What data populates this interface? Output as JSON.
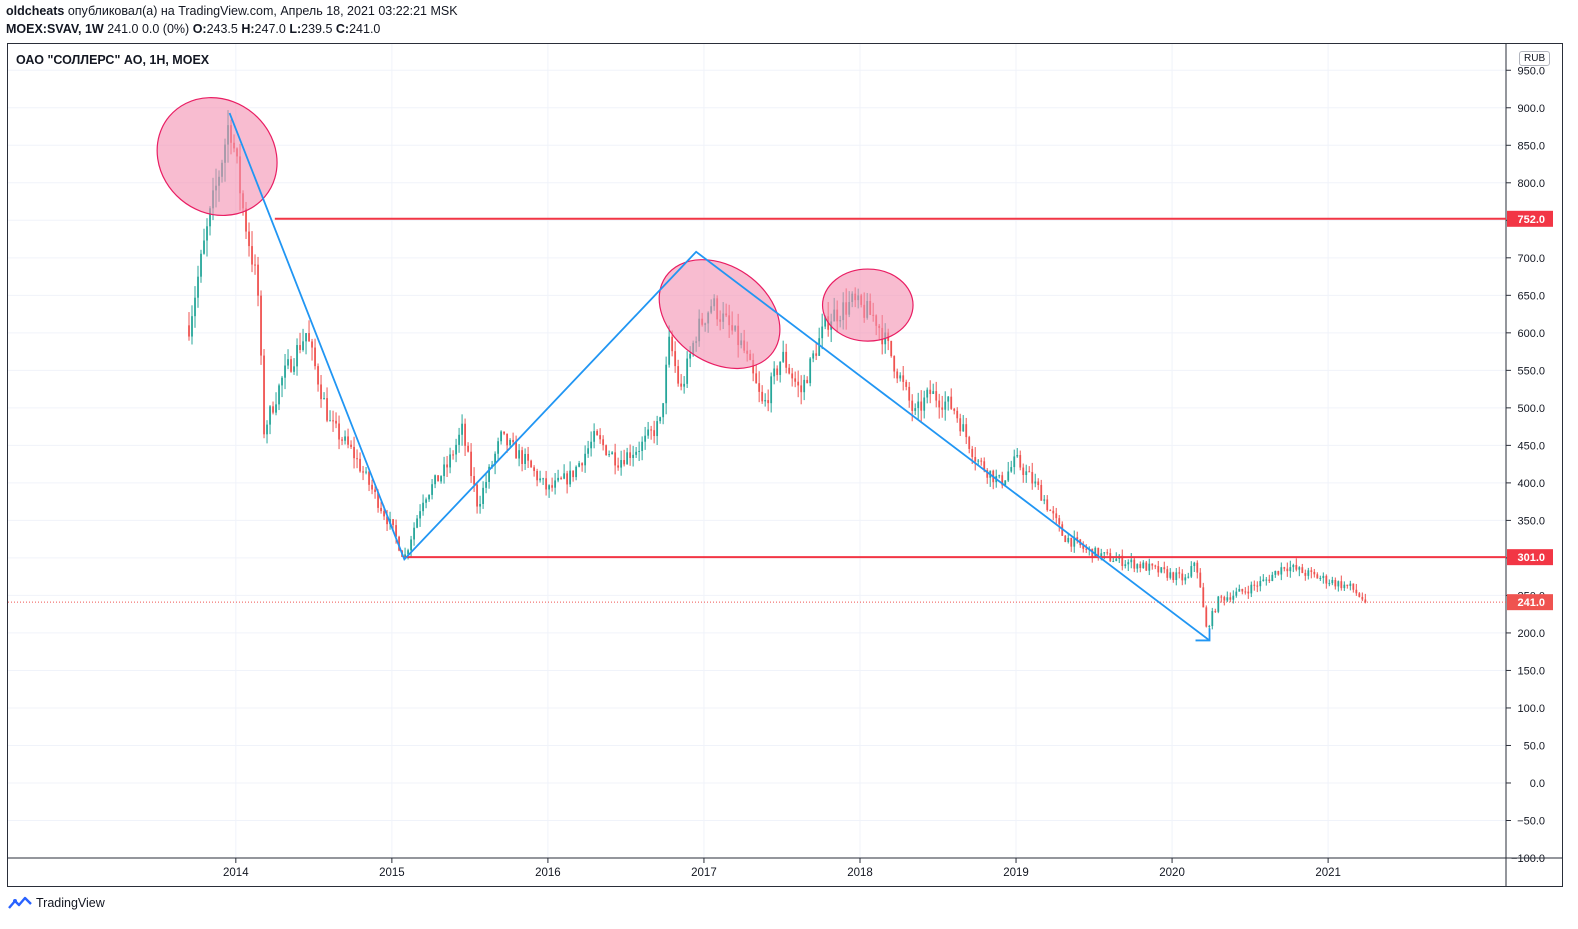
{
  "header": {
    "author": "oldcheats",
    "publish_line": " опубликовал(а) на TradingView.com, Апрель 18, 2021 03:22:21 MSK",
    "symbol": "MOEX:SVAV, 1W",
    "quote_values": "241.0 0.0 (0%)",
    "o_label": "O:",
    "o_value": "243.5",
    "h_label": "H:",
    "h_value": "247.0",
    "l_label": "L:",
    "l_value": "239.5",
    "c_label": "C:",
    "c_value": "241.0"
  },
  "chart_title": "ОАО \"СОЛЛЕРС\" АО, 1Н, MOEX",
  "currency": "RUB",
  "footer": {
    "brand": "TradingView"
  },
  "colors": {
    "up": "#26a69a",
    "down": "#ef5350",
    "level": "#f23645",
    "trend": "#2196f3",
    "ellipse_fill": "#f48fb1",
    "ellipse_stroke": "#e91e63",
    "grid": "#f0f3fa"
  },
  "chart_data": {
    "type": "candlestick",
    "timeframe": "1W",
    "x_ticks": [
      "2014",
      "2015",
      "2016",
      "2017",
      "2018",
      "2019",
      "2020",
      "2021"
    ],
    "x_range": [
      2012.54,
      2022.14
    ],
    "y_ticks": [
      "950.0",
      "900.0",
      "850.0",
      "800.0",
      "750.0",
      "700.0",
      "650.0",
      "600.0",
      "550.0",
      "500.0",
      "450.0",
      "400.0",
      "350.0",
      "300.0",
      "250.0",
      "200.0",
      "150.0",
      "100.0",
      "50.0",
      "0.0",
      "−50.0",
      "−100.0"
    ],
    "y_range": [
      -100,
      985
    ],
    "price_path": [
      [
        2013.7,
        610
      ],
      [
        2013.8,
        720
      ],
      [
        2013.88,
        800
      ],
      [
        2013.96,
        885
      ],
      [
        2014.05,
        760
      ],
      [
        2014.14,
        660
      ],
      [
        2014.18,
        470
      ],
      [
        2014.3,
        540
      ],
      [
        2014.45,
        600
      ],
      [
        2014.6,
        480
      ],
      [
        2014.75,
        440
      ],
      [
        2014.85,
        400
      ],
      [
        2015.0,
        340
      ],
      [
        2015.08,
        300
      ],
      [
        2015.2,
        380
      ],
      [
        2015.35,
        420
      ],
      [
        2015.45,
        470
      ],
      [
        2015.55,
        370
      ],
      [
        2015.7,
        460
      ],
      [
        2015.85,
        430
      ],
      [
        2016.0,
        390
      ],
      [
        2016.15,
        410
      ],
      [
        2016.3,
        460
      ],
      [
        2016.45,
        430
      ],
      [
        2016.6,
        450
      ],
      [
        2016.72,
        480
      ],
      [
        2016.78,
        590
      ],
      [
        2016.85,
        520
      ],
      [
        2016.95,
        600
      ],
      [
        2017.05,
        640
      ],
      [
        2017.25,
        580
      ],
      [
        2017.38,
        500
      ],
      [
        2017.5,
        570
      ],
      [
        2017.62,
        520
      ],
      [
        2017.72,
        580
      ],
      [
        2017.8,
        620
      ],
      [
        2017.95,
        640
      ],
      [
        2018.1,
        620
      ],
      [
        2018.2,
        570
      ],
      [
        2018.35,
        490
      ],
      [
        2018.45,
        520
      ],
      [
        2018.6,
        500
      ],
      [
        2018.75,
        430
      ],
      [
        2018.9,
        400
      ],
      [
        2019.0,
        430
      ],
      [
        2019.15,
        390
      ],
      [
        2019.3,
        330
      ],
      [
        2019.45,
        310
      ],
      [
        2019.6,
        300
      ],
      [
        2019.8,
        290
      ],
      [
        2019.95,
        280
      ],
      [
        2020.1,
        270
      ],
      [
        2020.15,
        300
      ],
      [
        2020.22,
        205
      ],
      [
        2020.3,
        245
      ],
      [
        2020.45,
        255
      ],
      [
        2020.6,
        270
      ],
      [
        2020.72,
        290
      ],
      [
        2020.85,
        280
      ],
      [
        2021.0,
        270
      ],
      [
        2021.15,
        260
      ],
      [
        2021.24,
        241
      ]
    ],
    "levels": [
      {
        "price": 752.0,
        "label": "752.0",
        "x_start": 2014.25
      },
      {
        "price": 301.0,
        "label": "301.0",
        "x_start": 2015.08
      }
    ],
    "current_price": {
      "price": 241.0,
      "label": "241.0"
    },
    "trendlines": [
      {
        "points": [
          [
            2013.96,
            893
          ],
          [
            2015.08,
            298
          ],
          [
            2016.95,
            708
          ],
          [
            2020.24,
            190
          ]
        ]
      }
    ],
    "ellipses": [
      {
        "cx": 2013.88,
        "cy": 835,
        "rx": 0.4,
        "ry": 75,
        "rotation": 40
      },
      {
        "cx": 2017.1,
        "cy": 625,
        "rx": 0.42,
        "ry": 64,
        "rotation": 35
      },
      {
        "cx": 2018.05,
        "cy": 637,
        "rx": 0.29,
        "ry": 48,
        "rotation": 0
      }
    ]
  }
}
